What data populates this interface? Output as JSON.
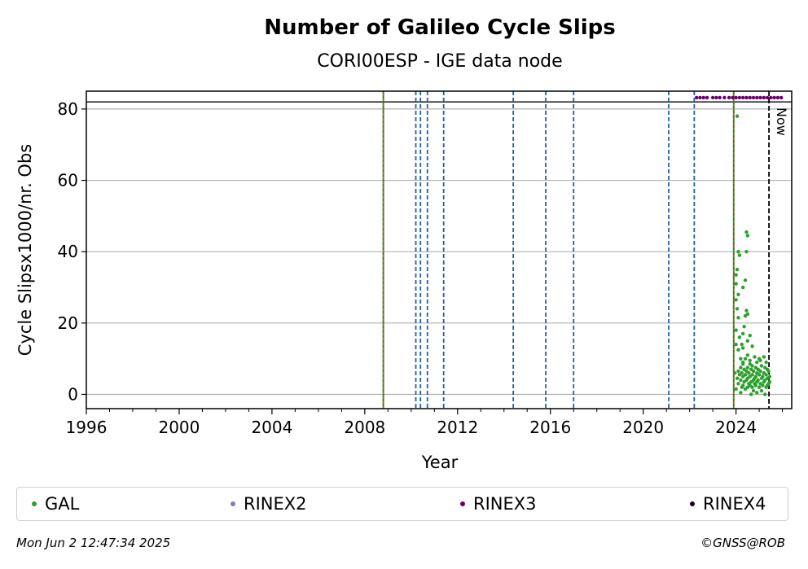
{
  "chart_data": {
    "type": "scatter",
    "title": "Number of Galileo Cycle Slips",
    "subtitle": "CORI00ESP - IGE data node",
    "xlabel": "Year",
    "ylabel": "Cycle Slipsx1000/nr. Obs",
    "xlim": [
      1996,
      2026.4
    ],
    "ylim": [
      -4,
      85
    ],
    "x_ticks": [
      1996,
      2000,
      2004,
      2008,
      2012,
      2016,
      2020,
      2024
    ],
    "y_ticks": [
      0,
      20,
      40,
      60,
      80
    ],
    "grid": "horizontal",
    "hline": 82,
    "now_label": "Now",
    "now_year": 2025.42,
    "red_event_lines": [
      2008.8,
      2023.9
    ],
    "blue_event_lines": [
      2010.2,
      2010.4,
      2010.7,
      2011.4,
      2014.4,
      2015.8,
      2017.0,
      2021.1,
      2022.2
    ],
    "series": [
      {
        "name": "GAL",
        "color": "#2ca02c",
        "points": [
          [
            2024.05,
            78.0
          ],
          [
            2024.45,
            45.5
          ],
          [
            2024.5,
            44.5
          ],
          [
            2024.45,
            40.0
          ],
          [
            2024.1,
            40.0
          ],
          [
            2024.15,
            39.0
          ],
          [
            2024.05,
            35.0
          ],
          [
            2024.0,
            33.5
          ],
          [
            2024.4,
            32.0
          ],
          [
            2024.0,
            31.0
          ],
          [
            2024.3,
            30.0
          ],
          [
            2024.1,
            28.0
          ],
          [
            2024.0,
            26.5
          ],
          [
            2024.05,
            24.0
          ],
          [
            2024.45,
            23.5
          ],
          [
            2024.5,
            22.5
          ],
          [
            2024.4,
            22.0
          ],
          [
            2024.1,
            21.5
          ],
          [
            2024.35,
            19.0
          ],
          [
            2024.0,
            18.0
          ],
          [
            2024.3,
            17.0
          ],
          [
            2024.6,
            16.5
          ],
          [
            2024.15,
            16.0
          ],
          [
            2024.5,
            15.0
          ],
          [
            2024.25,
            14.0
          ],
          [
            2024.0,
            14.0
          ],
          [
            2024.7,
            13.5
          ],
          [
            2024.3,
            13.0
          ],
          [
            2024.1,
            12.5
          ],
          [
            2024.5,
            11.0
          ],
          [
            2024.8,
            10.5
          ],
          [
            2025.2,
            10.5
          ],
          [
            2024.4,
            10.0
          ],
          [
            2024.2,
            10.0
          ],
          [
            2025.0,
            10.0
          ],
          [
            2023.95,
            6.0
          ],
          [
            2024.6,
            9.5
          ],
          [
            2024.9,
            9.0
          ],
          [
            2025.3,
            9.0
          ],
          [
            2024.3,
            8.5
          ],
          [
            2024.7,
            8.0
          ],
          [
            2025.1,
            8.0
          ],
          [
            2024.2,
            7.5
          ],
          [
            2024.5,
            7.5
          ],
          [
            2024.85,
            7.5
          ],
          [
            2025.25,
            7.5
          ],
          [
            2024.35,
            7.0
          ],
          [
            2024.65,
            7.0
          ],
          [
            2024.95,
            7.0
          ],
          [
            2025.35,
            7.0
          ],
          [
            2024.1,
            6.5
          ],
          [
            2024.45,
            6.5
          ],
          [
            2024.75,
            6.5
          ],
          [
            2025.05,
            6.5
          ],
          [
            2025.4,
            6.5
          ],
          [
            2024.25,
            6.0
          ],
          [
            2024.55,
            6.0
          ],
          [
            2024.9,
            6.0
          ],
          [
            2025.2,
            6.0
          ],
          [
            2024.15,
            5.5
          ],
          [
            2024.4,
            5.5
          ],
          [
            2024.7,
            5.5
          ],
          [
            2025.0,
            5.5
          ],
          [
            2025.3,
            5.5
          ],
          [
            2024.3,
            5.0
          ],
          [
            2024.6,
            5.0
          ],
          [
            2024.85,
            5.0
          ],
          [
            2025.15,
            5.0
          ],
          [
            2025.45,
            5.0
          ],
          [
            2024.05,
            4.5
          ],
          [
            2024.5,
            4.5
          ],
          [
            2024.8,
            4.5
          ],
          [
            2025.1,
            4.5
          ],
          [
            2025.35,
            4.5
          ],
          [
            2024.2,
            4.0
          ],
          [
            2024.45,
            4.0
          ],
          [
            2024.75,
            4.0
          ],
          [
            2024.95,
            4.0
          ],
          [
            2025.25,
            4.0
          ],
          [
            2024.35,
            3.5
          ],
          [
            2024.65,
            3.5
          ],
          [
            2024.9,
            3.5
          ],
          [
            2025.2,
            3.5
          ],
          [
            2025.45,
            3.5
          ],
          [
            2024.1,
            3.0
          ],
          [
            2024.55,
            3.0
          ],
          [
            2024.8,
            3.0
          ],
          [
            2025.05,
            3.0
          ],
          [
            2025.4,
            3.0
          ],
          [
            2024.3,
            2.5
          ],
          [
            2024.6,
            2.5
          ],
          [
            2024.85,
            2.5
          ],
          [
            2025.15,
            2.5
          ],
          [
            2025.35,
            2.5
          ],
          [
            2024.25,
            2.0
          ],
          [
            2024.5,
            2.0
          ],
          [
            2024.7,
            2.0
          ],
          [
            2025.0,
            2.0
          ],
          [
            2025.3,
            2.0
          ],
          [
            2024.0,
            1.5
          ],
          [
            2024.4,
            1.5
          ],
          [
            2024.75,
            1.0
          ],
          [
            2025.1,
            1.0
          ],
          [
            2024.2,
            0.5
          ],
          [
            2024.9,
            0.5
          ],
          [
            2025.25,
            0.0
          ],
          [
            2024.65,
            0.0
          ],
          [
            2024.3,
            9.0
          ],
          [
            2024.6,
            8.5
          ],
          [
            2025.05,
            9.5
          ]
        ]
      },
      {
        "name": "RINEX2",
        "color": "#7f7fbf",
        "points": []
      },
      {
        "name": "RINEX3",
        "color": "#6b006b",
        "points": [
          [
            2022.3,
            83.2
          ],
          [
            2022.45,
            83.2
          ],
          [
            2022.6,
            83.2
          ],
          [
            2022.75,
            83.2
          ],
          [
            2023.0,
            83.2
          ],
          [
            2023.15,
            83.2
          ],
          [
            2023.3,
            83.2
          ],
          [
            2023.5,
            83.2
          ],
          [
            2023.7,
            83.2
          ],
          [
            2023.85,
            83.2
          ],
          [
            2024.0,
            83.2
          ],
          [
            2024.15,
            83.2
          ],
          [
            2024.3,
            83.2
          ],
          [
            2024.45,
            83.2
          ],
          [
            2024.6,
            83.2
          ],
          [
            2024.75,
            83.2
          ],
          [
            2024.9,
            83.2
          ],
          [
            2025.05,
            83.2
          ],
          [
            2025.2,
            83.2
          ],
          [
            2025.35,
            83.2
          ],
          [
            2025.5,
            83.2
          ],
          [
            2025.65,
            83.2
          ],
          [
            2025.8,
            83.2
          ],
          [
            2025.95,
            83.2
          ]
        ]
      },
      {
        "name": "RINEX4",
        "color": "#200020",
        "points": []
      }
    ]
  },
  "footer": {
    "timestamp": "Mon Jun  2 12:47:34 2025",
    "copyright": "©GNSS@ROB"
  }
}
